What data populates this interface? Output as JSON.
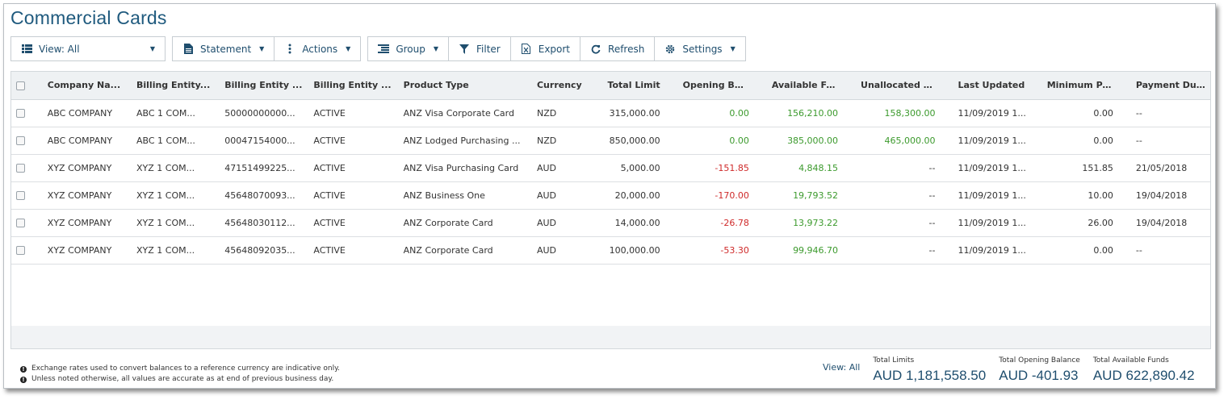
{
  "page_title": "Commercial Cards",
  "toolbar": {
    "view_label": "View: All",
    "statement_label": "Statement",
    "actions_label": "Actions",
    "group_label": "Group",
    "filter_label": "Filter",
    "export_label": "Export",
    "refresh_label": "Refresh",
    "settings_label": "Settings"
  },
  "columns": [
    "Company Na...",
    "Billing Entity...",
    "Billing Entity ...",
    "Billing Entity ...",
    "Product Type",
    "Currency",
    "Total Limit",
    "Opening Bal...",
    "Available Fu...",
    "Unallocated Li...",
    "Last Updated",
    "Minimum Pa...",
    "Payment Du..."
  ],
  "rows": [
    [
      "ABC COMPANY",
      "ABC 1 COM...",
      "50000000000...",
      "ACTIVE",
      "ANZ Visa Corporate Card",
      "NZD",
      "315,000.00",
      "0.00",
      "156,210.00",
      "158,300.00",
      "11/09/2019 1...",
      "0.00",
      "--"
    ],
    [
      "ABC COMPANY",
      "ABC 1 COM...",
      "00047154000...",
      "ACTIVE",
      "ANZ Lodged Purchasing ...",
      "NZD",
      "850,000.00",
      "0.00",
      "385,000.00",
      "465,000.00",
      "11/09/2019 1...",
      "0.00",
      "--"
    ],
    [
      "XYZ COMPANY",
      "XYZ 1 COM...",
      "47151499225...",
      "ACTIVE",
      "ANZ Visa Purchasing Card",
      "AUD",
      "5,000.00",
      "-151.85",
      "4,848.15",
      "--",
      "11/09/2019 1...",
      "151.85",
      "21/05/2018"
    ],
    [
      "XYZ COMPANY",
      "XYZ 1 COM...",
      "45648070093...",
      "ACTIVE",
      "ANZ Business One",
      "AUD",
      "20,000.00",
      "-170.00",
      "19,793.52",
      "--",
      "11/09/2019 1...",
      "10.00",
      "19/04/2018"
    ],
    [
      "XYZ COMPANY",
      "XYZ 1 COM...",
      "45648030112...",
      "ACTIVE",
      "ANZ Corporate Card",
      "AUD",
      "14,000.00",
      "-26.78",
      "13,973.22",
      "--",
      "11/09/2019 1...",
      "26.00",
      "19/04/2018"
    ],
    [
      "XYZ COMPANY",
      "XYZ 1 COM...",
      "45648092035...",
      "ACTIVE",
      "ANZ Corporate Card",
      "AUD",
      "100,000.00",
      "-53.30",
      "99,946.70",
      "--",
      "11/09/2019 1...",
      "0.00",
      "--"
    ]
  ],
  "notes": [
    "Exchange rates used to convert balances to a reference currency are indicative only.",
    "Unless noted otherwise, all values are accurate as at end of previous business day."
  ],
  "totals": {
    "view_label": "View: All",
    "limits_label": "Total Limits",
    "limits_value": "AUD 1,181,558.50",
    "opening_label": "Total Opening Balance",
    "opening_value": "AUD -401.93",
    "available_label": "Total Available Funds",
    "available_value": "AUD 622,890.42"
  },
  "colors": {
    "positive": "#3c9a2d",
    "negative": "#cf2a2a",
    "brand": "#1f5a7e"
  }
}
